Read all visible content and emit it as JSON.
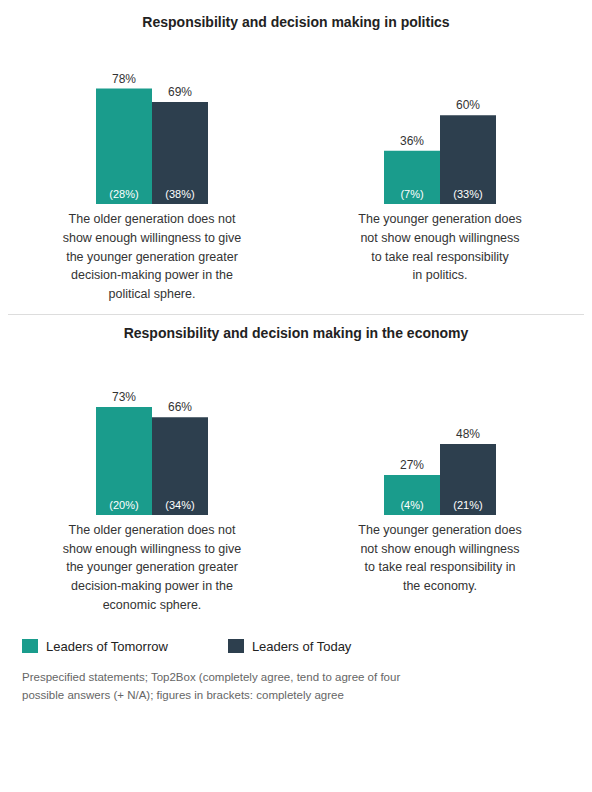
{
  "chart_data": [
    {
      "type": "bar",
      "title": "Responsibility and decision making in politics",
      "categories": [
        null
      ],
      "xlabel": "The older generation does not\nshow enough willingness to give\nthe younger generation greater\ndecision-making power in the\npolitical sphere.",
      "series": [
        {
          "name": "Leaders of Tomorrow",
          "color": "#1a9c8c",
          "values": [
            78
          ],
          "value_labels": [
            "78%"
          ],
          "completely_agree": [
            28
          ],
          "completely_agree_labels": [
            "(28%)"
          ]
        },
        {
          "name": "Leaders of Today",
          "color": "#2d3f4e",
          "values": [
            69
          ],
          "value_labels": [
            "69%"
          ],
          "completely_agree": [
            38
          ],
          "completely_agree_labels": [
            "(38%)"
          ]
        }
      ],
      "ylim": [
        0,
        100
      ],
      "data_labels": true,
      "tick_labels": false,
      "grid": false,
      "legend": "bottom"
    },
    {
      "type": "bar",
      "categories": [
        null
      ],
      "xlabel": "The younger generation does\nnot show enough willingness\nto take real responsibility\nin politics.",
      "series": [
        {
          "name": "Leaders of Tomorrow",
          "color": "#1a9c8c",
          "values": [
            36
          ],
          "value_labels": [
            "36%"
          ],
          "completely_agree": [
            7
          ],
          "completely_agree_labels": [
            "(7%)"
          ]
        },
        {
          "name": "Leaders of Today",
          "color": "#2d3f4e",
          "values": [
            60
          ],
          "value_labels": [
            "60%"
          ],
          "completely_agree": [
            33
          ],
          "completely_agree_labels": [
            "(33%)"
          ]
        }
      ],
      "ylim": [
        0,
        100
      ],
      "data_labels": true,
      "tick_labels": false,
      "grid": false
    },
    {
      "type": "bar",
      "title": "Responsibility and decision making in the economy",
      "categories": [
        null
      ],
      "xlabel": "The older generation does not\nshow enough willingness to give\nthe younger generation greater\ndecision-making power in the\neconomic sphere.",
      "series": [
        {
          "name": "Leaders of Tomorrow",
          "color": "#1a9c8c",
          "values": [
            73
          ],
          "value_labels": [
            "73%"
          ],
          "completely_agree": [
            20
          ],
          "completely_agree_labels": [
            "(20%)"
          ]
        },
        {
          "name": "Leaders of Today",
          "color": "#2d3f4e",
          "values": [
            66
          ],
          "value_labels": [
            "66%"
          ],
          "completely_agree": [
            34
          ],
          "completely_agree_labels": [
            "(34%)"
          ]
        }
      ],
      "ylim": [
        0,
        100
      ],
      "data_labels": true,
      "tick_labels": false,
      "grid": false
    },
    {
      "type": "bar",
      "categories": [
        null
      ],
      "xlabel": "The younger generation does\nnot show enough willingness\nto take real responsibility in\nthe economy.",
      "series": [
        {
          "name": "Leaders of Tomorrow",
          "color": "#1a9c8c",
          "values": [
            27
          ],
          "value_labels": [
            "27%"
          ],
          "completely_agree": [
            4
          ],
          "completely_agree_labels": [
            "(4%)"
          ]
        },
        {
          "name": "Leaders of Today",
          "color": "#2d3f4e",
          "values": [
            48
          ],
          "value_labels": [
            "48%"
          ],
          "completely_agree": [
            21
          ],
          "completely_agree_labels": [
            "(21%)"
          ]
        }
      ],
      "ylim": [
        0,
        100
      ],
      "data_labels": true,
      "tick_labels": false,
      "grid": false,
      "annotations": [
        "Prespecified statements; Top2Box (completely agree, tend to agree of four",
        "possible answers (+ N/A); figures in brackets: completely agree"
      ]
    }
  ]
}
